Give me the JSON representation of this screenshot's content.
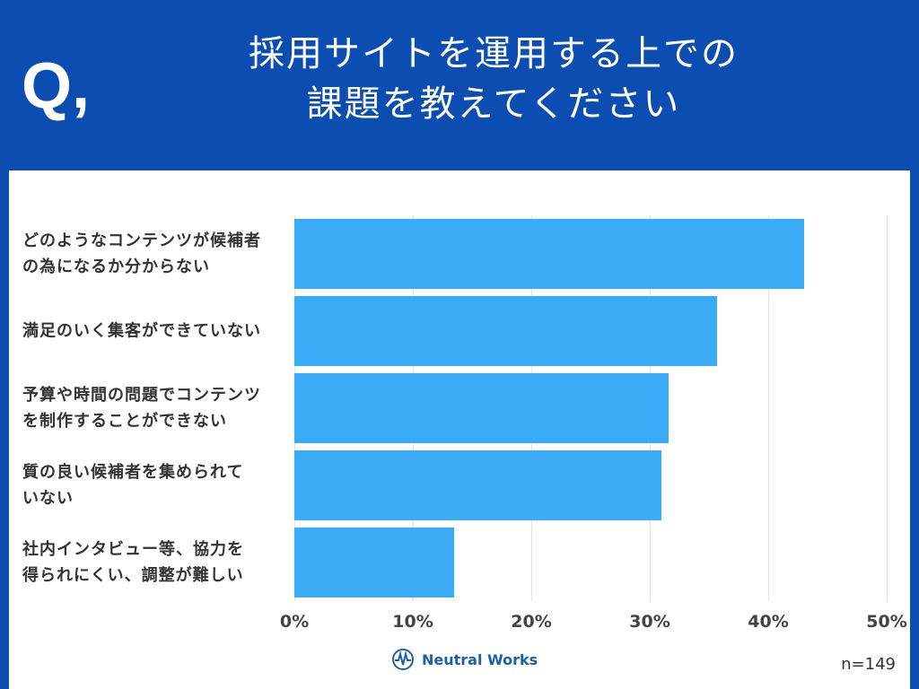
{
  "header": {
    "mark": "Q,",
    "title": "採用サイトを運用する上での\n課題を教えてください"
  },
  "chart_data": {
    "type": "bar",
    "orientation": "horizontal",
    "categories": [
      "どのようなコンテンツが候補者\nの為になるか分からない",
      "満足のいく集客ができていない",
      "予算や時間の問題でコンテンツ\nを制作することができない",
      "質の良い候補者を集められて\nいない",
      "社内インタビュー等、協力を\n得られにくい、調整が難しい"
    ],
    "values": [
      43.0,
      35.7,
      31.6,
      31.0,
      13.5
    ],
    "color": "#3aabf6",
    "xlim": [
      0,
      50
    ],
    "xticks": [
      {
        "value": 0,
        "label": "0%"
      },
      {
        "value": 10,
        "label": "10%"
      },
      {
        "value": 20,
        "label": "20%"
      },
      {
        "value": 30,
        "label": "30%"
      },
      {
        "value": 40,
        "label": "40%"
      },
      {
        "value": 50,
        "label": "50%"
      }
    ],
    "grid": true
  },
  "footer": {
    "logo": "Neutral Works",
    "sample": "n=149"
  }
}
